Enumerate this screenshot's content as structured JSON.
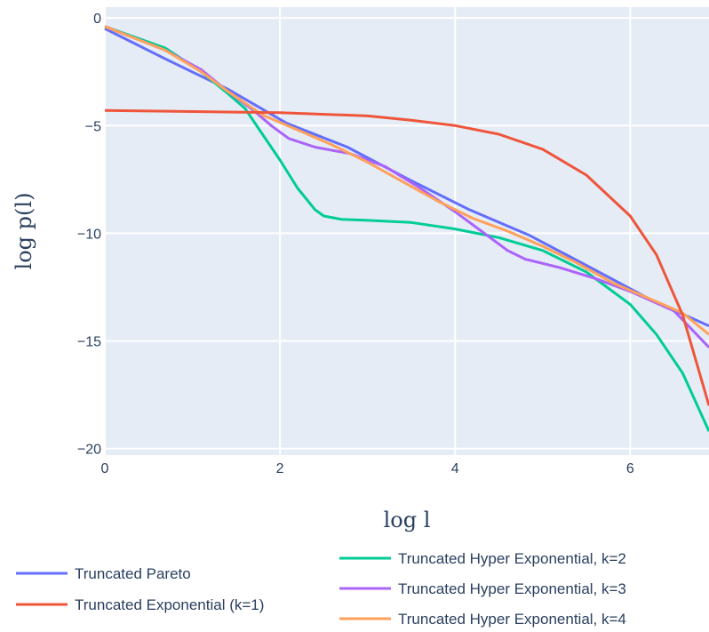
{
  "chart_data": {
    "type": "line",
    "xlabel": "log l",
    "ylabel": "log p(l)",
    "xlim": [
      0,
      6.9
    ],
    "ylim": [
      -20.3,
      0.5
    ],
    "xticks": [
      0,
      2,
      4,
      6
    ],
    "yticks": [
      0,
      -5,
      -10,
      -15,
      -20
    ],
    "xtick_labels": [
      "0",
      "2",
      "4",
      "6"
    ],
    "ytick_labels": [
      "0",
      "−5",
      "−10",
      "−15",
      "−20"
    ],
    "grid": true,
    "legend_position": "bottom",
    "background": "#e5ecf6",
    "series": [
      {
        "name": "Truncated Pareto",
        "color": "#636efa",
        "x": [
          0,
          0.69,
          1.4,
          2.08,
          2.77,
          3.47,
          4.16,
          4.85,
          5.55,
          6.24,
          6.9
        ],
        "y": [
          -0.5,
          -1.9,
          -3.3,
          -4.9,
          -6.0,
          -7.5,
          -8.9,
          -10.1,
          -11.6,
          -13.1,
          -14.3
        ]
      },
      {
        "name": "Truncated Exponential (k=1)",
        "color": "#ef553b",
        "x": [
          0,
          1.0,
          2.0,
          3.0,
          3.5,
          4.0,
          4.5,
          5.0,
          5.5,
          6.0,
          6.3,
          6.6,
          6.9
        ],
        "y": [
          -4.3,
          -4.35,
          -4.4,
          -4.55,
          -4.75,
          -5.0,
          -5.4,
          -6.1,
          -7.3,
          -9.2,
          -11.0,
          -13.8,
          -18.0
        ]
      },
      {
        "name": "Truncated Hyper Exponential, k=2",
        "color": "#00cc96",
        "x": [
          0,
          0.69,
          1.1,
          1.4,
          1.6,
          1.8,
          2.0,
          2.2,
          2.4,
          2.5,
          2.7,
          3.0,
          3.5,
          4.0,
          4.5,
          5.0,
          5.5,
          6.0,
          6.3,
          6.6,
          6.9
        ],
        "y": [
          -0.4,
          -1.4,
          -2.5,
          -3.5,
          -4.2,
          -5.4,
          -6.6,
          -7.9,
          -8.9,
          -9.2,
          -9.35,
          -9.4,
          -9.5,
          -9.8,
          -10.2,
          -10.8,
          -11.8,
          -13.3,
          -14.7,
          -16.5,
          -19.2
        ]
      },
      {
        "name": "Truncated Hyper Exponential, k=3",
        "color": "#ab63fa",
        "x": [
          0,
          0.69,
          1.1,
          1.4,
          1.7,
          1.9,
          2.1,
          2.4,
          2.8,
          3.2,
          3.6,
          4.0,
          4.3,
          4.6,
          4.8,
          5.2,
          5.6,
          6.0,
          6.5,
          6.9
        ],
        "y": [
          -0.4,
          -1.5,
          -2.4,
          -3.4,
          -4.3,
          -5.0,
          -5.6,
          -6.0,
          -6.3,
          -6.9,
          -7.9,
          -9.0,
          -9.9,
          -10.8,
          -11.2,
          -11.6,
          -12.1,
          -12.7,
          -13.6,
          -15.3
        ]
      },
      {
        "name": "Truncated Hyper Exponential, k=4",
        "color": "#ffa15a",
        "x": [
          0,
          0.69,
          1.1,
          1.4,
          1.8,
          2.2,
          2.6,
          3.0,
          3.4,
          3.8,
          4.2,
          4.6,
          5.0,
          5.4,
          5.8,
          6.2,
          6.6,
          6.9
        ],
        "y": [
          -0.4,
          -1.5,
          -2.5,
          -3.4,
          -4.5,
          -5.2,
          -5.9,
          -6.7,
          -7.6,
          -8.5,
          -9.3,
          -9.9,
          -10.6,
          -11.4,
          -12.3,
          -13.0,
          -13.7,
          -14.7
        ]
      }
    ]
  }
}
